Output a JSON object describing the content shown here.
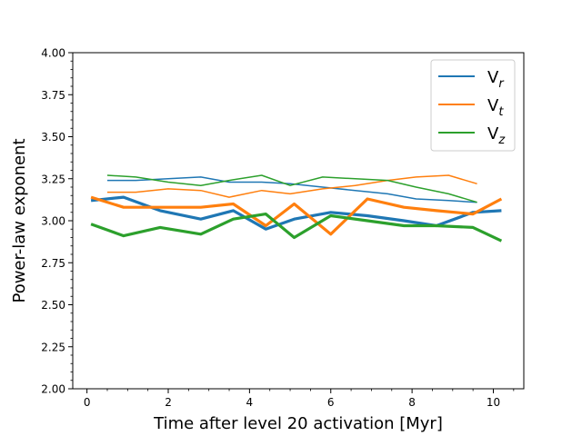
{
  "chart_data": {
    "type": "line",
    "title": "",
    "xlabel": "Time after level 20 activation [Myr]",
    "ylabel": "Power-law exponent",
    "xlim": [
      -0.35,
      10.75
    ],
    "ylim": [
      2.0,
      4.0
    ],
    "x_ticks": [
      0,
      2,
      4,
      6,
      8,
      10
    ],
    "x_tick_labels": [
      "0",
      "2",
      "4",
      "6",
      "8",
      "10"
    ],
    "y_ticks": [
      2.0,
      2.25,
      2.5,
      2.75,
      3.0,
      3.25,
      3.5,
      3.75,
      4.0
    ],
    "y_tick_labels": [
      "2.00",
      "2.25",
      "2.50",
      "2.75",
      "3.00",
      "3.25",
      "3.50",
      "3.75",
      "4.00"
    ],
    "grid": false,
    "legend": {
      "position": "top-right",
      "entries": [
        {
          "label": "V",
          "sub": "r",
          "color": "#1f77b4"
        },
        {
          "label": "V",
          "sub": "t",
          "color": "#ff7f0e"
        },
        {
          "label": "V",
          "sub": "z",
          "color": "#2ca02c"
        }
      ]
    },
    "series": [
      {
        "name": "Vr thin",
        "component": "r",
        "color": "#1f77b4",
        "weight": "thin",
        "x": [
          0.5,
          1.2,
          2.0,
          2.8,
          3.5,
          4.3,
          5.0,
          5.8,
          6.6,
          7.4,
          8.1,
          8.9,
          9.6
        ],
        "y": [
          3.24,
          3.24,
          3.25,
          3.26,
          3.23,
          3.23,
          3.22,
          3.2,
          3.18,
          3.16,
          3.13,
          3.12,
          3.11
        ]
      },
      {
        "name": "Vt thin",
        "component": "t",
        "color": "#ff7f0e",
        "weight": "thin",
        "x": [
          0.5,
          1.2,
          2.0,
          2.8,
          3.5,
          4.3,
          5.0,
          5.8,
          6.6,
          7.4,
          8.1,
          8.9,
          9.6
        ],
        "y": [
          3.17,
          3.17,
          3.19,
          3.18,
          3.14,
          3.18,
          3.16,
          3.19,
          3.21,
          3.24,
          3.26,
          3.27,
          3.22
        ]
      },
      {
        "name": "Vz thin",
        "component": "z",
        "color": "#2ca02c",
        "weight": "thin",
        "x": [
          0.5,
          1.2,
          2.0,
          2.8,
          3.5,
          4.3,
          5.0,
          5.8,
          6.6,
          7.4,
          8.1,
          8.9,
          9.6
        ],
        "y": [
          3.27,
          3.26,
          3.23,
          3.21,
          3.24,
          3.27,
          3.21,
          3.26,
          3.25,
          3.24,
          3.2,
          3.16,
          3.11
        ]
      },
      {
        "name": "Vr thick",
        "component": "r",
        "color": "#1f77b4",
        "weight": "thick",
        "x": [
          0.1,
          0.9,
          1.8,
          2.8,
          3.6,
          4.4,
          5.1,
          6.0,
          6.9,
          7.8,
          8.6,
          9.5,
          10.2
        ],
        "y": [
          3.12,
          3.14,
          3.06,
          3.01,
          3.06,
          2.95,
          3.01,
          3.05,
          3.03,
          3.0,
          2.97,
          3.05,
          3.06
        ]
      },
      {
        "name": "Vt thick",
        "component": "t",
        "color": "#ff7f0e",
        "weight": "thick",
        "x": [
          0.1,
          0.9,
          1.8,
          2.8,
          3.6,
          4.4,
          5.1,
          6.0,
          6.9,
          7.8,
          8.6,
          9.5,
          10.2
        ],
        "y": [
          3.14,
          3.08,
          3.08,
          3.08,
          3.1,
          2.97,
          3.1,
          2.92,
          3.13,
          3.08,
          3.06,
          3.04,
          3.13
        ]
      },
      {
        "name": "Vz thick",
        "component": "z",
        "color": "#2ca02c",
        "weight": "thick",
        "x": [
          0.1,
          0.9,
          1.8,
          2.8,
          3.6,
          4.4,
          5.1,
          6.0,
          6.9,
          7.8,
          8.6,
          9.5,
          10.2
        ],
        "y": [
          2.98,
          2.91,
          2.96,
          2.92,
          3.01,
          3.04,
          2.9,
          3.03,
          3.0,
          2.97,
          2.97,
          2.96,
          2.88
        ]
      }
    ]
  }
}
